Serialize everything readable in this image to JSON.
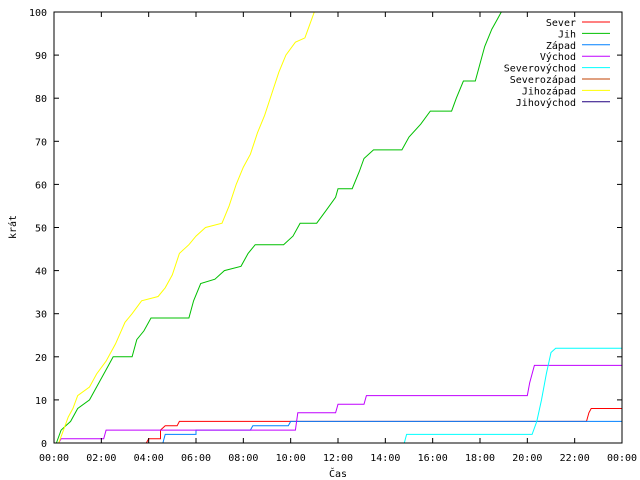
{
  "chart_data": {
    "type": "line",
    "xlabel": "Čas",
    "ylabel": "krát",
    "xlim": [
      0,
      24
    ],
    "ylim": [
      0,
      100
    ],
    "grid": false,
    "legend_position": "top-right",
    "x_ticks": [
      {
        "value": 0,
        "label": "00:00"
      },
      {
        "value": 2,
        "label": "02:00"
      },
      {
        "value": 4,
        "label": "04:00"
      },
      {
        "value": 6,
        "label": "06:00"
      },
      {
        "value": 8,
        "label": "08:00"
      },
      {
        "value": 10,
        "label": "10:00"
      },
      {
        "value": 12,
        "label": "12:00"
      },
      {
        "value": 14,
        "label": "14:00"
      },
      {
        "value": 16,
        "label": "16:00"
      },
      {
        "value": 18,
        "label": "18:00"
      },
      {
        "value": 20,
        "label": "20:00"
      },
      {
        "value": 22,
        "label": "22:00"
      },
      {
        "value": 24,
        "label": "00:00"
      }
    ],
    "y_ticks": [
      {
        "value": 0,
        "label": "0"
      },
      {
        "value": 10,
        "label": "10"
      },
      {
        "value": 20,
        "label": "20"
      },
      {
        "value": 30,
        "label": "30"
      },
      {
        "value": 40,
        "label": "40"
      },
      {
        "value": 50,
        "label": "50"
      },
      {
        "value": 60,
        "label": "60"
      },
      {
        "value": 70,
        "label": "70"
      },
      {
        "value": 80,
        "label": "80"
      },
      {
        "value": 90,
        "label": "90"
      },
      {
        "value": 100,
        "label": "100"
      }
    ],
    "series": [
      {
        "name": "Sever",
        "color": "#ff0000",
        "points": [
          [
            3.9,
            0
          ],
          [
            4.0,
            1
          ],
          [
            4.5,
            1
          ],
          [
            4.5,
            3
          ],
          [
            4.7,
            4
          ],
          [
            5.2,
            4
          ],
          [
            5.3,
            5
          ],
          [
            22.5,
            5
          ],
          [
            22.6,
            7
          ],
          [
            22.7,
            8
          ],
          [
            24.0,
            8
          ]
        ]
      },
      {
        "name": "Jih",
        "color": "#00c000",
        "points": [
          [
            0.1,
            0
          ],
          [
            0.3,
            3
          ],
          [
            0.5,
            4
          ],
          [
            0.7,
            5
          ],
          [
            1.0,
            8
          ],
          [
            1.5,
            10
          ],
          [
            1.8,
            13
          ],
          [
            2.2,
            17
          ],
          [
            2.5,
            20
          ],
          [
            3.3,
            20
          ],
          [
            3.5,
            24
          ],
          [
            3.8,
            26
          ],
          [
            4.1,
            29
          ],
          [
            5.7,
            29
          ],
          [
            5.9,
            33
          ],
          [
            6.2,
            37
          ],
          [
            6.8,
            38
          ],
          [
            7.2,
            40
          ],
          [
            7.9,
            41
          ],
          [
            8.2,
            44
          ],
          [
            8.5,
            46
          ],
          [
            9.7,
            46
          ],
          [
            10.1,
            48
          ],
          [
            10.4,
            51
          ],
          [
            11.1,
            51
          ],
          [
            11.5,
            54
          ],
          [
            11.9,
            57
          ],
          [
            12.0,
            59
          ],
          [
            12.6,
            59
          ],
          [
            12.9,
            63
          ],
          [
            13.1,
            66
          ],
          [
            13.5,
            68
          ],
          [
            14.7,
            68
          ],
          [
            15.0,
            71
          ],
          [
            15.5,
            74
          ],
          [
            15.9,
            77
          ],
          [
            16.8,
            77
          ],
          [
            17.0,
            80
          ],
          [
            17.3,
            84
          ],
          [
            17.8,
            84
          ],
          [
            18.0,
            88
          ],
          [
            18.2,
            92
          ],
          [
            18.5,
            96
          ],
          [
            18.7,
            98
          ],
          [
            18.9,
            100
          ]
        ]
      },
      {
        "name": "Západ",
        "color": "#0080ff",
        "points": [
          [
            4.6,
            0
          ],
          [
            4.7,
            2
          ],
          [
            6.0,
            2
          ],
          [
            6.0,
            3
          ],
          [
            8.3,
            3
          ],
          [
            8.4,
            4
          ],
          [
            9.9,
            4
          ],
          [
            10.0,
            5
          ],
          [
            24.0,
            5
          ]
        ]
      },
      {
        "name": "Východ",
        "color": "#c000ff",
        "points": [
          [
            0.2,
            0
          ],
          [
            0.3,
            1
          ],
          [
            2.1,
            1
          ],
          [
            2.2,
            3
          ],
          [
            10.2,
            3
          ],
          [
            10.3,
            7
          ],
          [
            11.9,
            7
          ],
          [
            12.0,
            9
          ],
          [
            13.1,
            9
          ],
          [
            13.2,
            11
          ],
          [
            20.0,
            11
          ],
          [
            20.1,
            14
          ],
          [
            20.3,
            18
          ],
          [
            24.0,
            18
          ]
        ]
      },
      {
        "name": "Severovýchod",
        "color": "#00ffff",
        "points": [
          [
            14.8,
            0
          ],
          [
            14.9,
            2
          ],
          [
            20.2,
            2
          ],
          [
            20.4,
            5
          ],
          [
            20.6,
            10
          ],
          [
            20.8,
            16
          ],
          [
            21.0,
            21
          ],
          [
            21.2,
            22
          ],
          [
            24.0,
            22
          ]
        ]
      },
      {
        "name": "Severozápad",
        "color": "#c04000",
        "points": []
      },
      {
        "name": "Jihozápad",
        "color": "#ffff00",
        "points": [
          [
            0.2,
            0
          ],
          [
            0.4,
            3
          ],
          [
            0.6,
            6
          ],
          [
            0.8,
            8
          ],
          [
            1.0,
            11
          ],
          [
            1.5,
            13
          ],
          [
            1.8,
            16
          ],
          [
            2.2,
            19
          ],
          [
            2.6,
            23
          ],
          [
            3.0,
            28
          ],
          [
            3.3,
            30
          ],
          [
            3.7,
            33
          ],
          [
            4.4,
            34
          ],
          [
            4.7,
            36
          ],
          [
            5.0,
            39
          ],
          [
            5.3,
            44
          ],
          [
            5.7,
            46
          ],
          [
            6.0,
            48
          ],
          [
            6.4,
            50
          ],
          [
            7.1,
            51
          ],
          [
            7.4,
            55
          ],
          [
            7.7,
            60
          ],
          [
            8.0,
            64
          ],
          [
            8.3,
            67
          ],
          [
            8.6,
            72
          ],
          [
            8.9,
            76
          ],
          [
            9.2,
            81
          ],
          [
            9.5,
            86
          ],
          [
            9.8,
            90
          ],
          [
            10.2,
            93
          ],
          [
            10.6,
            94
          ],
          [
            10.8,
            97
          ],
          [
            11.0,
            100
          ]
        ]
      },
      {
        "name": "Jihovýchod",
        "color": "#200080",
        "points": []
      }
    ]
  }
}
